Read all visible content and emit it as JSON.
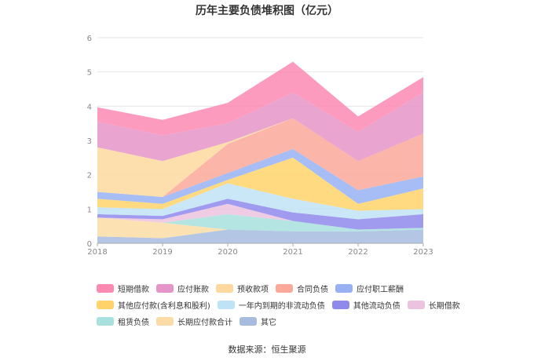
{
  "chart_data": {
    "type": "area",
    "stacked": true,
    "title": "历年主要负债堆积图（亿元）",
    "x": [
      "2018",
      "2019",
      "2020",
      "2021",
      "2022",
      "2023"
    ],
    "ylim": [
      0,
      6
    ],
    "yticks": [
      "0",
      "1",
      "2",
      "3",
      "4",
      "5",
      "6"
    ],
    "grid": true,
    "legend_position": "bottom",
    "series": [
      {
        "name": "短期借款",
        "color": "#fb8ab3",
        "values": [
          0.42,
          0.45,
          0.6,
          0.9,
          0.45,
          0.45
        ]
      },
      {
        "name": "应付账款",
        "color": "#e595c7",
        "values": [
          0.75,
          0.75,
          0.55,
          0.75,
          0.85,
          1.2
        ]
      },
      {
        "name": "预收款项",
        "color": "#fdd9a0",
        "values": [
          1.3,
          1.05,
          0.05,
          0.0,
          0.0,
          0.0
        ]
      },
      {
        "name": "合同负债",
        "color": "#fca89a",
        "values": [
          0.0,
          0.0,
          0.85,
          0.9,
          0.85,
          1.25
        ]
      },
      {
        "name": "应付职工薪酬",
        "color": "#98b1f5",
        "values": [
          0.2,
          0.2,
          0.2,
          0.25,
          0.4,
          0.35
        ]
      },
      {
        "name": "其他应付款(含利息和股利)",
        "color": "#ffd36a",
        "values": [
          0.25,
          0.15,
          0.1,
          1.2,
          0.2,
          0.6
        ]
      },
      {
        "name": "一年内到期的非流动负债",
        "color": "#bfe3f6",
        "values": [
          0.2,
          0.2,
          0.45,
          0.4,
          0.25,
          0.15
        ]
      },
      {
        "name": "其他流动负债",
        "color": "#8f89ec",
        "values": [
          0.1,
          0.1,
          0.15,
          0.25,
          0.3,
          0.4
        ]
      },
      {
        "name": "长期借款",
        "color": "#ecc3df",
        "values": [
          0.0,
          0.1,
          0.3,
          0.0,
          0.0,
          0.0
        ]
      },
      {
        "name": "租赁负债",
        "color": "#a8e0de",
        "values": [
          0.0,
          0.0,
          0.45,
          0.3,
          0.05,
          0.05
        ]
      },
      {
        "name": "长期应付款合计",
        "color": "#fbdca6",
        "values": [
          0.55,
          0.45,
          0.0,
          0.0,
          0.0,
          0.0
        ]
      },
      {
        "name": "其它",
        "color": "#a6bde0",
        "values": [
          0.2,
          0.15,
          0.4,
          0.35,
          0.35,
          0.4
        ]
      }
    ]
  },
  "source": "数据来源：恒生聚源"
}
